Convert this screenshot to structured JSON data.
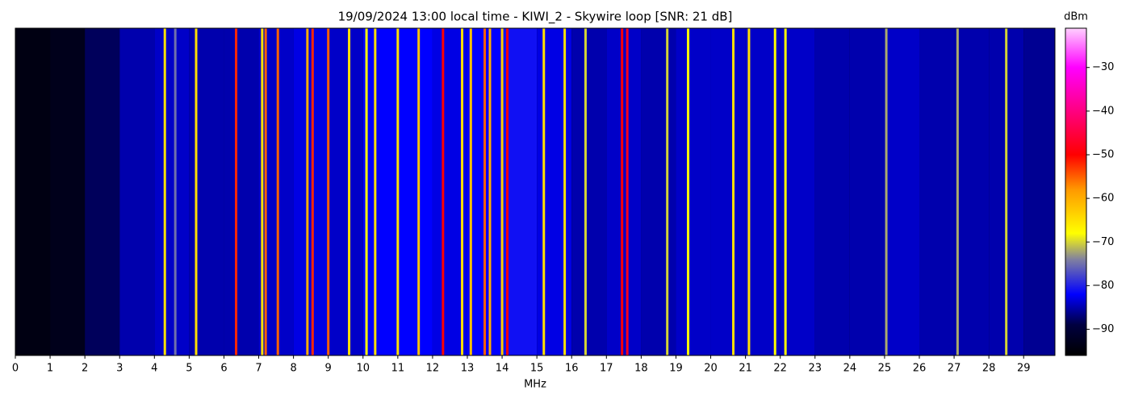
{
  "chart_data": {
    "type": "waterfall",
    "title": "19/09/2024 13:00 local time - KIWI_2 - Skywire loop [SNR: 21 dB]",
    "xlabel": "MHz",
    "colorbar_label": "dBm",
    "xlim": [
      0,
      29.9
    ],
    "xticks": [
      0,
      1,
      2,
      3,
      4,
      5,
      6,
      7,
      8,
      9,
      10,
      11,
      12,
      13,
      14,
      15,
      16,
      17,
      18,
      19,
      20,
      21,
      22,
      23,
      24,
      25,
      26,
      27,
      28,
      29
    ],
    "clim": [
      -96,
      -21
    ],
    "cticks": [
      {
        "value": -30,
        "label": "−30"
      },
      {
        "value": -40,
        "label": "−40"
      },
      {
        "value": -50,
        "label": "−50"
      },
      {
        "value": -60,
        "label": "−60"
      },
      {
        "value": -70,
        "label": "−70"
      },
      {
        "value": -80,
        "label": "−80"
      },
      {
        "value": -90,
        "label": "−90"
      }
    ],
    "colormap": [
      {
        "value": -96,
        "color": "#000000"
      },
      {
        "value": -89,
        "color": "#000040"
      },
      {
        "value": -82,
        "color": "#0000ff"
      },
      {
        "value": -74,
        "color": "#8080a0"
      },
      {
        "value": -68,
        "color": "#ffff00"
      },
      {
        "value": -58,
        "color": "#ff9900"
      },
      {
        "value": -50,
        "color": "#ff0000"
      },
      {
        "value": -40,
        "color": "#ff0080"
      },
      {
        "value": -30,
        "color": "#ff00ff"
      },
      {
        "value": -21,
        "color": "#ffd0ff"
      }
    ],
    "noise_x": [
      0,
      1,
      2,
      3,
      4,
      5,
      6,
      7,
      8,
      9,
      10,
      11,
      12,
      13,
      14,
      15,
      16,
      17,
      18,
      19,
      20,
      21,
      22,
      23,
      24,
      25,
      26,
      27,
      28,
      29
    ],
    "noise": [
      -94,
      -93,
      -88,
      -85,
      -84,
      -85,
      -85,
      -84,
      -83,
      -84,
      -82,
      -82,
      -83,
      -82,
      -81,
      -83,
      -85,
      -84,
      -85,
      -84,
      -84,
      -84,
      -84,
      -85,
      -85,
      -84,
      -85,
      -85,
      -85,
      -86
    ],
    "signals": {
      "freq": [
        4.3,
        4.6,
        5.2,
        6.35,
        7.1,
        7.2,
        7.55,
        8.4,
        8.55,
        9.0,
        9.6,
        10.1,
        10.35,
        11.0,
        11.6,
        12.3,
        12.85,
        13.1,
        13.5,
        13.65,
        14.0,
        14.15,
        15.2,
        15.8,
        16.4,
        17.45,
        17.6,
        18.75,
        19.35,
        20.65,
        21.1,
        21.85,
        22.15,
        25.05,
        27.1,
        28.5
      ],
      "level": [
        -65,
        -75,
        -65,
        -52,
        -65,
        -55,
        -55,
        -60,
        -52,
        -55,
        -65,
        -68,
        -65,
        -65,
        -62,
        -50,
        -65,
        -62,
        -55,
        -60,
        -63,
        -50,
        -65,
        -65,
        -70,
        -50,
        -48,
        -70,
        -68,
        -65,
        -65,
        -68,
        -68,
        -72,
        -72,
        -70
      ]
    }
  }
}
